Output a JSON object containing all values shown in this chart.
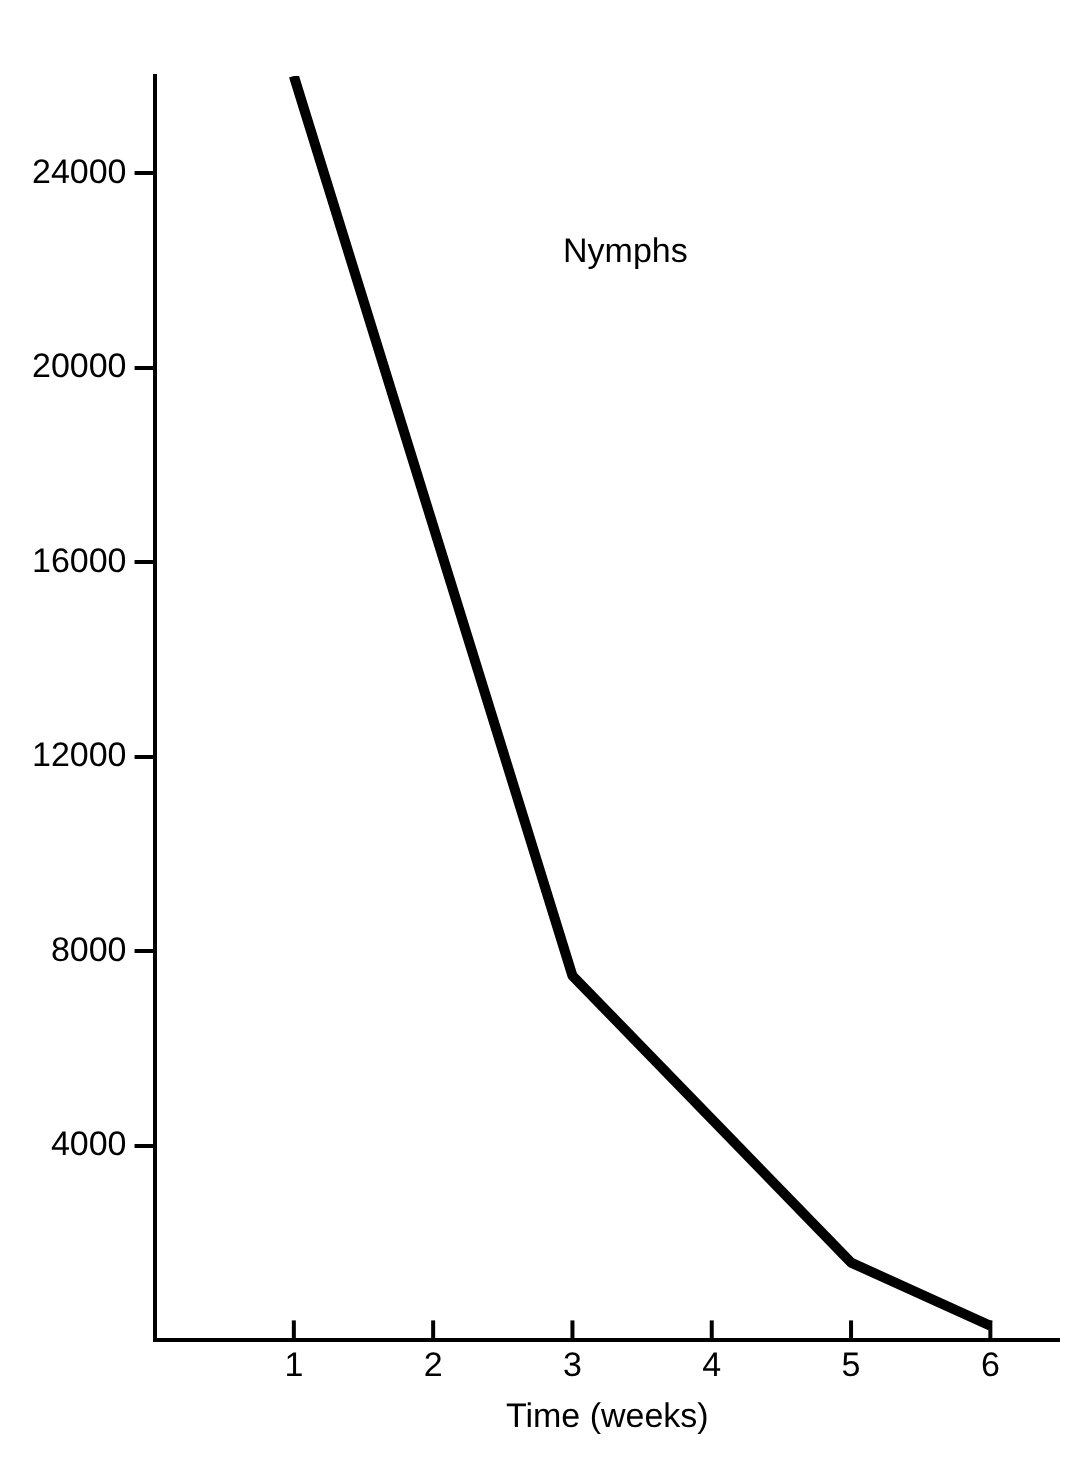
{
  "chart_data": {
    "type": "line",
    "xlabel": "Time (weeks)",
    "x": [
      1,
      3,
      5,
      6
    ],
    "series": [
      {
        "color": "#000000",
        "values": [
          26000,
          7500,
          1600,
          300
        ]
      }
    ],
    "xlim": [
      0,
      6.5
    ],
    "xticks": [
      1,
      2,
      3,
      4,
      5,
      6
    ],
    "ylim": [
      0,
      26000
    ],
    "yticks": [
      4000,
      8000,
      12000,
      16000,
      20000,
      24000
    ],
    "annotations": [
      "Nymphs"
    ],
    "grid": false,
    "legend": false,
    "marker": "none",
    "line_style": "solid"
  }
}
